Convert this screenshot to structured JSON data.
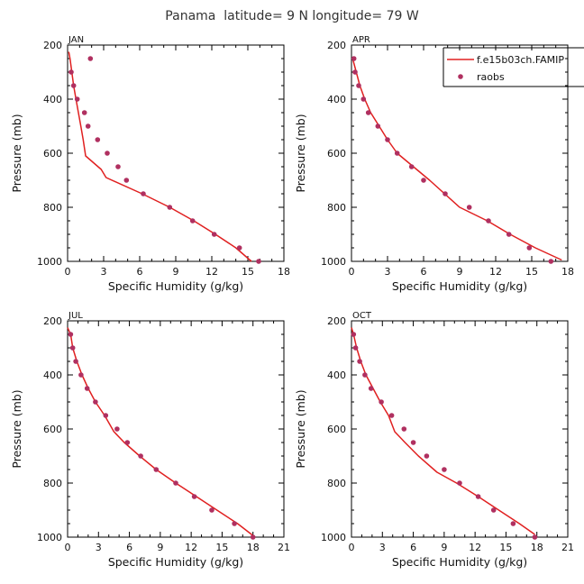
{
  "chart_data": {
    "type": "line",
    "title": "Panama  latitude= 9 N longitude= 79 W",
    "xlabel": "Specific Humidity (g/kg)",
    "ylabel": "Pressure (mb)",
    "legend": {
      "placement": "top-right of APR panel",
      "entries": [
        {
          "name": "f.e15b03ch.FAMIP",
          "style": "line",
          "color": "#e02020"
        },
        {
          "name": "raobs",
          "style": "marker",
          "color": "#b03060"
        }
      ]
    },
    "colors": {
      "model": "#e02020",
      "raobs": "#b03060",
      "axes": "#000000"
    },
    "y_axis": {
      "range": [
        200,
        1000
      ],
      "inverted": true,
      "ticks": [
        200,
        400,
        600,
        800,
        1000
      ]
    },
    "panels": [
      {
        "label": "JAN",
        "xlim": [
          0,
          18
        ],
        "xticks": [
          0,
          3,
          6,
          9,
          12,
          15,
          18
        ],
        "series": [
          {
            "name": "f.e15b03ch.FAMIP",
            "points": [
              [
                0.1,
                225
              ],
              [
                0.2,
                250
              ],
              [
                0.35,
                300
              ],
              [
                0.5,
                350
              ],
              [
                0.7,
                400
              ],
              [
                0.9,
                450
              ],
              [
                1.1,
                500
              ],
              [
                1.3,
                550
              ],
              [
                1.5,
                610
              ],
              [
                2.8,
                660
              ],
              [
                3.2,
                690
              ],
              [
                6.2,
                750
              ],
              [
                8.5,
                800
              ],
              [
                10.5,
                850
              ],
              [
                12.3,
                900
              ],
              [
                14.0,
                950
              ],
              [
                15.3,
                1000
              ]
            ]
          },
          {
            "name": "raobs",
            "points": [
              [
                1.9,
                250
              ],
              [
                0.3,
                300
              ],
              [
                0.5,
                350
              ],
              [
                0.8,
                400
              ],
              [
                1.4,
                450
              ],
              [
                1.7,
                500
              ],
              [
                2.5,
                550
              ],
              [
                3.3,
                600
              ],
              [
                4.2,
                650
              ],
              [
                4.9,
                700
              ],
              [
                6.3,
                750
              ],
              [
                8.5,
                800
              ],
              [
                10.4,
                850
              ],
              [
                12.2,
                900
              ],
              [
                14.3,
                950
              ],
              [
                15.9,
                1000
              ]
            ]
          }
        ]
      },
      {
        "label": "APR",
        "xlim": [
          0,
          18
        ],
        "xticks": [
          0,
          3,
          6,
          9,
          12,
          15,
          18
        ],
        "series": [
          {
            "name": "f.e15b03ch.FAMIP",
            "points": [
              [
                0.1,
                250
              ],
              [
                0.4,
                300
              ],
              [
                0.7,
                350
              ],
              [
                1.1,
                400
              ],
              [
                1.6,
                450
              ],
              [
                2.3,
                500
              ],
              [
                3.0,
                550
              ],
              [
                3.8,
                600
              ],
              [
                6.5,
                700
              ],
              [
                9.0,
                800
              ],
              [
                11.3,
                850
              ],
              [
                13.2,
                900
              ],
              [
                15.3,
                950
              ],
              [
                17.5,
                995
              ]
            ]
          },
          {
            "name": "raobs",
            "points": [
              [
                0.2,
                250
              ],
              [
                0.3,
                300
              ],
              [
                0.6,
                350
              ],
              [
                1.0,
                400
              ],
              [
                1.4,
                450
              ],
              [
                2.2,
                500
              ],
              [
                3.0,
                550
              ],
              [
                3.8,
                600
              ],
              [
                5.0,
                650
              ],
              [
                6.0,
                700
              ],
              [
                7.8,
                750
              ],
              [
                9.8,
                800
              ],
              [
                11.4,
                850
              ],
              [
                13.1,
                900
              ],
              [
                14.8,
                950
              ],
              [
                16.6,
                1000
              ]
            ]
          }
        ]
      },
      {
        "label": "JUL",
        "xlim": [
          0,
          21
        ],
        "xticks": [
          0,
          3,
          6,
          9,
          12,
          15,
          18,
          21
        ],
        "series": [
          {
            "name": "f.e15b03ch.FAMIP",
            "points": [
              [
                0.0,
                225
              ],
              [
                0.3,
                250
              ],
              [
                0.5,
                300
              ],
              [
                0.9,
                350
              ],
              [
                1.4,
                400
              ],
              [
                2.0,
                450
              ],
              [
                2.7,
                500
              ],
              [
                3.6,
                550
              ],
              [
                4.5,
                610
              ],
              [
                5.5,
                650
              ],
              [
                7.0,
                700
              ],
              [
                8.6,
                750
              ],
              [
                10.5,
                800
              ],
              [
                12.5,
                850
              ],
              [
                14.5,
                900
              ],
              [
                16.5,
                950
              ],
              [
                18.2,
                1000
              ]
            ]
          },
          {
            "name": "raobs",
            "points": [
              [
                0.3,
                250
              ],
              [
                0.5,
                300
              ],
              [
                0.8,
                350
              ],
              [
                1.3,
                400
              ],
              [
                1.9,
                450
              ],
              [
                2.7,
                500
              ],
              [
                3.7,
                550
              ],
              [
                4.8,
                600
              ],
              [
                5.8,
                650
              ],
              [
                7.1,
                700
              ],
              [
                8.6,
                750
              ],
              [
                10.5,
                800
              ],
              [
                12.3,
                850
              ],
              [
                14.0,
                900
              ],
              [
                16.2,
                950
              ],
              [
                18.0,
                1000
              ]
            ]
          }
        ]
      },
      {
        "label": "OCT",
        "xlim": [
          0,
          21
        ],
        "xticks": [
          0,
          3,
          6,
          9,
          12,
          15,
          18,
          21
        ],
        "series": [
          {
            "name": "f.e15b03ch.FAMIP",
            "points": [
              [
                0.0,
                225
              ],
              [
                0.2,
                250
              ],
              [
                0.5,
                300
              ],
              [
                0.9,
                350
              ],
              [
                1.4,
                400
              ],
              [
                2.1,
                450
              ],
              [
                2.8,
                500
              ],
              [
                3.6,
                550
              ],
              [
                4.2,
                610
              ],
              [
                5.2,
                650
              ],
              [
                6.5,
                700
              ],
              [
                8.3,
                760
              ],
              [
                10.2,
                800
              ],
              [
                12.3,
                850
              ],
              [
                14.3,
                900
              ],
              [
                16.3,
                950
              ],
              [
                17.8,
                990
              ]
            ]
          },
          {
            "name": "raobs",
            "points": [
              [
                0.2,
                250
              ],
              [
                0.4,
                300
              ],
              [
                0.8,
                350
              ],
              [
                1.3,
                400
              ],
              [
                1.9,
                450
              ],
              [
                2.9,
                500
              ],
              [
                3.9,
                550
              ],
              [
                5.1,
                600
              ],
              [
                6.0,
                650
              ],
              [
                7.3,
                700
              ],
              [
                9.0,
                750
              ],
              [
                10.5,
                800
              ],
              [
                12.3,
                850
              ],
              [
                13.8,
                900
              ],
              [
                15.7,
                950
              ],
              [
                17.8,
                1000
              ]
            ]
          }
        ]
      }
    ]
  }
}
